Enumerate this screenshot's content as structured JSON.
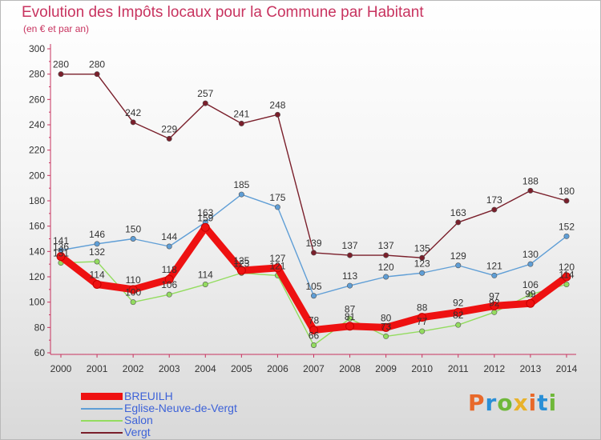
{
  "header": {
    "title": "Evolution des Impôts locaux pour la Commune par Habitant",
    "subtitle": "(en € et par an)"
  },
  "logo": {
    "text": "Proxiti",
    "colors": [
      "#e8692a",
      "#2a8fd6",
      "#6fb83a",
      "#e8b22a"
    ]
  },
  "colors": {
    "title": "#c8335f",
    "axis": "#c8335f",
    "legend_text": "#3d62d8"
  },
  "chart_data": {
    "type": "line",
    "title": "Evolution des Impôts locaux pour la Commune par Habitant",
    "subtitle": "(en € et par an)",
    "xlabel": "",
    "ylabel": "",
    "x": [
      2000,
      2001,
      2002,
      2003,
      2004,
      2005,
      2006,
      2007,
      2008,
      2009,
      2010,
      2011,
      2012,
      2013,
      2014
    ],
    "ylim": [
      60,
      300
    ],
    "yticks": [
      60,
      80,
      100,
      120,
      140,
      160,
      180,
      200,
      220,
      240,
      260,
      280,
      300
    ],
    "grid": false,
    "legend_position": "bottom-left",
    "series": [
      {
        "name": "Vergt",
        "color": "#7a1f2b",
        "values": [
          280,
          280,
          242,
          229,
          257,
          241,
          248,
          139,
          137,
          137,
          135,
          163,
          173,
          188,
          180
        ],
        "labels": [
          "280",
          "280",
          "242",
          "229",
          "257",
          "241",
          "248",
          "139",
          "137",
          "137",
          "135",
          "163",
          "173",
          "188",
          "180"
        ]
      },
      {
        "name": "Eglise-Neuve-de-Vergt",
        "color": "#5f9ed6",
        "values": [
          141,
          146,
          150,
          144,
          163,
          185,
          175,
          105,
          113,
          120,
          123,
          129,
          121,
          130,
          152
        ],
        "labels": [
          "141",
          "146",
          "150",
          "144",
          "163",
          "185",
          "175",
          "105",
          "113",
          "120",
          "123",
          "129",
          "121",
          "130",
          "152"
        ]
      },
      {
        "name": "Salon",
        "color": "#93dc5f",
        "values": [
          131,
          132,
          100,
          106,
          114,
          123,
          121,
          66,
          87,
          73,
          77,
          82,
          92,
          106,
          114
        ],
        "labels": [
          "131",
          "132",
          "100",
          "106",
          "114",
          "123",
          "121",
          "66",
          "87",
          "73",
          "77",
          "82",
          "92",
          "106",
          "114"
        ]
      },
      {
        "name": "BREUILH",
        "color": "#ee1111",
        "values": [
          136,
          114,
          110,
          118,
          159,
          125,
          127,
          78,
          81,
          80,
          88,
          92,
          97,
          99,
          120
        ],
        "labels": [
          "136",
          "114",
          "110",
          "118",
          "159",
          "125",
          "127",
          "78",
          "81",
          "80",
          "88",
          "92",
          "97",
          "99",
          "120"
        ]
      }
    ],
    "legend_order": [
      "BREUILH",
      "Eglise-Neuve-de-Vergt",
      "Salon",
      "Vergt"
    ]
  }
}
